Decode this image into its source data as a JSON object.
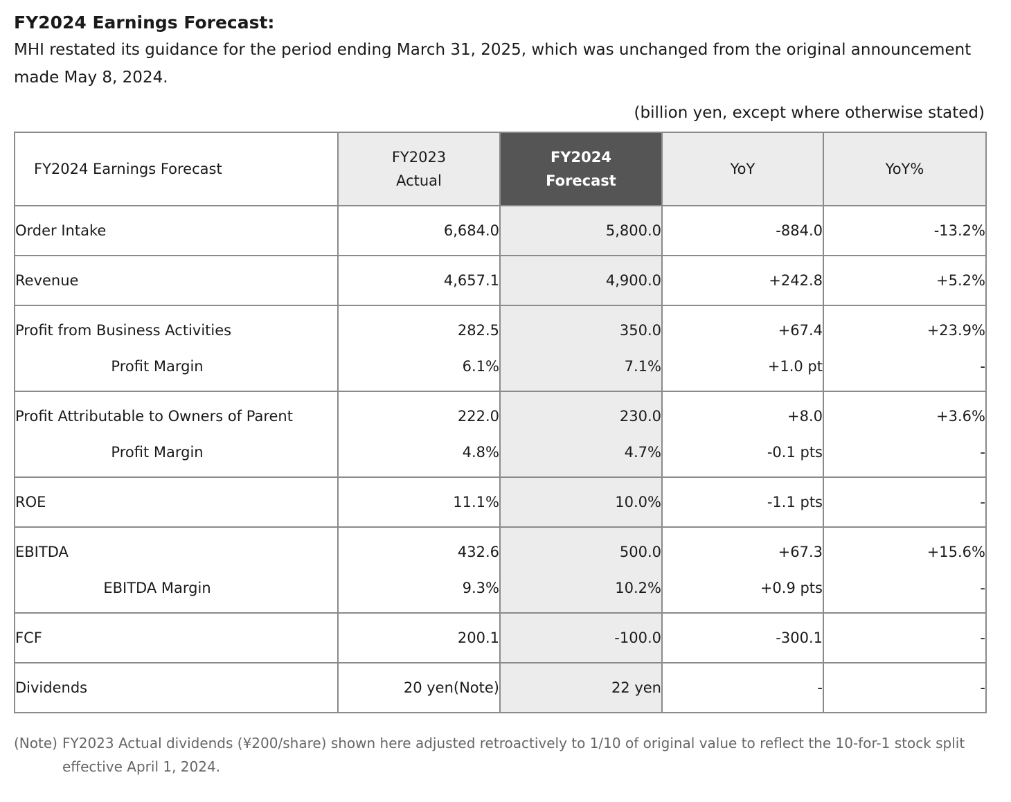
{
  "heading": "FY2024 Earnings Forecast:",
  "intro": "MHI restated its guidance for the period ending March 31, 2025, which was unchanged from the original announcement made May 8, 2024.",
  "unit_note": "(billion yen, except where otherwise stated)",
  "table": {
    "header": {
      "label": "FY2024 Earnings Forecast",
      "col1_line1": "FY2023",
      "col1_line2": "Actual",
      "col2_line1": "FY2024",
      "col2_line2": "Forecast",
      "col3": "YoY",
      "col4": "YoY%"
    },
    "rows": [
      {
        "label": "Order Intake",
        "actual": "6,684.0",
        "forecast": "5,800.0",
        "yoy": "-884.0",
        "yoy_pct": "-13.2%"
      },
      {
        "label": "Revenue",
        "actual": "4,657.1",
        "forecast": "4,900.0",
        "yoy": "+242.8",
        "yoy_pct": "+5.2%"
      },
      {
        "label": "Profit from Business Activities",
        "actual": "282.5",
        "forecast": "350.0",
        "yoy": "+67.4",
        "yoy_pct": "+23.9%",
        "sub": {
          "label": "Profit Margin",
          "actual": "6.1%",
          "forecast": "7.1%",
          "yoy": "+1.0 pt",
          "yoy_pct": "-"
        }
      },
      {
        "label": "Profit Attributable to Owners of Parent",
        "actual": "222.0",
        "forecast": "230.0",
        "yoy": "+8.0",
        "yoy_pct": "+3.6%",
        "sub": {
          "label": "Profit Margin",
          "actual": "4.8%",
          "forecast": "4.7%",
          "yoy": "-0.1 pts",
          "yoy_pct": "-"
        }
      },
      {
        "label": "ROE",
        "actual": "11.1%",
        "forecast": "10.0%",
        "yoy": "-1.1 pts",
        "yoy_pct": "-"
      },
      {
        "label": "EBITDA",
        "actual": "432.6",
        "forecast": "500.0",
        "yoy": "+67.3",
        "yoy_pct": "+15.6%",
        "sub": {
          "label": "EBITDA Margin",
          "actual": "9.3%",
          "forecast": "10.2%",
          "yoy": "+0.9 pts",
          "yoy_pct": "-"
        }
      },
      {
        "label": "FCF",
        "actual": "200.1",
        "forecast": "-100.0",
        "yoy": "-300.1",
        "yoy_pct": "-"
      },
      {
        "label": "Dividends",
        "actual": "20 yen(Note)",
        "forecast": "22 yen",
        "yoy": "-",
        "yoy_pct": "-"
      }
    ]
  },
  "footnote": {
    "tag": "(Note)",
    "text": "FY2023 Actual dividends (¥200/share) shown here adjusted retroactively to 1/10 of original value to reflect the 10-for-1 stock split effective April 1, 2024."
  },
  "colors": {
    "header_highlight": "#555555",
    "forecast_column": "#ececec",
    "border": "#8a8a8a"
  }
}
